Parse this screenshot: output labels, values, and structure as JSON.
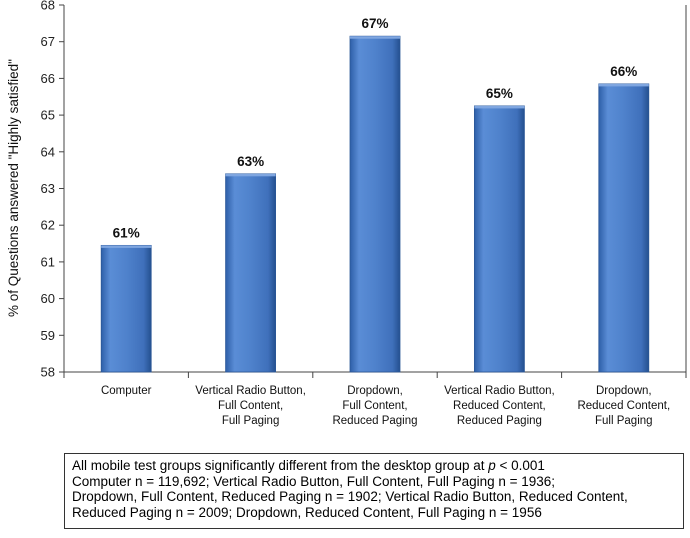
{
  "chart_data": {
    "type": "bar",
    "categories": [
      [
        "Computer"
      ],
      [
        "Vertical Radio Button,",
        "Full Content,",
        "Full Paging"
      ],
      [
        "Dropdown,",
        "Full Content,",
        "Reduced Paging"
      ],
      [
        "Vertical Radio Button,",
        "Reduced Content,",
        "Reduced Paging"
      ],
      [
        "Dropdown,",
        "Reduced Content,",
        "Full Paging"
      ]
    ],
    "values": [
      61.45,
      63.4,
      67.15,
      65.25,
      65.85
    ],
    "data_labels": [
      "61%",
      "63%",
      "67%",
      "65%",
      "66%"
    ],
    "ylabel": "% of Questions answered \"Highly satisfied\"",
    "ylim": [
      58,
      68
    ],
    "yticks": [
      58,
      59,
      60,
      61,
      62,
      63,
      64,
      65,
      66,
      67,
      68
    ],
    "bar_color": "#4A7EC6",
    "grid": false
  },
  "note": {
    "line1_prefix": "All mobile test groups significantly different from the desktop group at ",
    "line1_p": "p",
    "line1_suffix": " < 0.001",
    "line2": "Computer n = 119,692; Vertical Radio Button, Full Content, Full Paging  n = 1936;",
    "line3": "Dropdown, Full Content, Reduced Paging n = 1902; Vertical Radio Button, Reduced Content,",
    "line4": "Reduced Paging n = 2009; Dropdown, Reduced Content, Full Paging n = 1956"
  }
}
